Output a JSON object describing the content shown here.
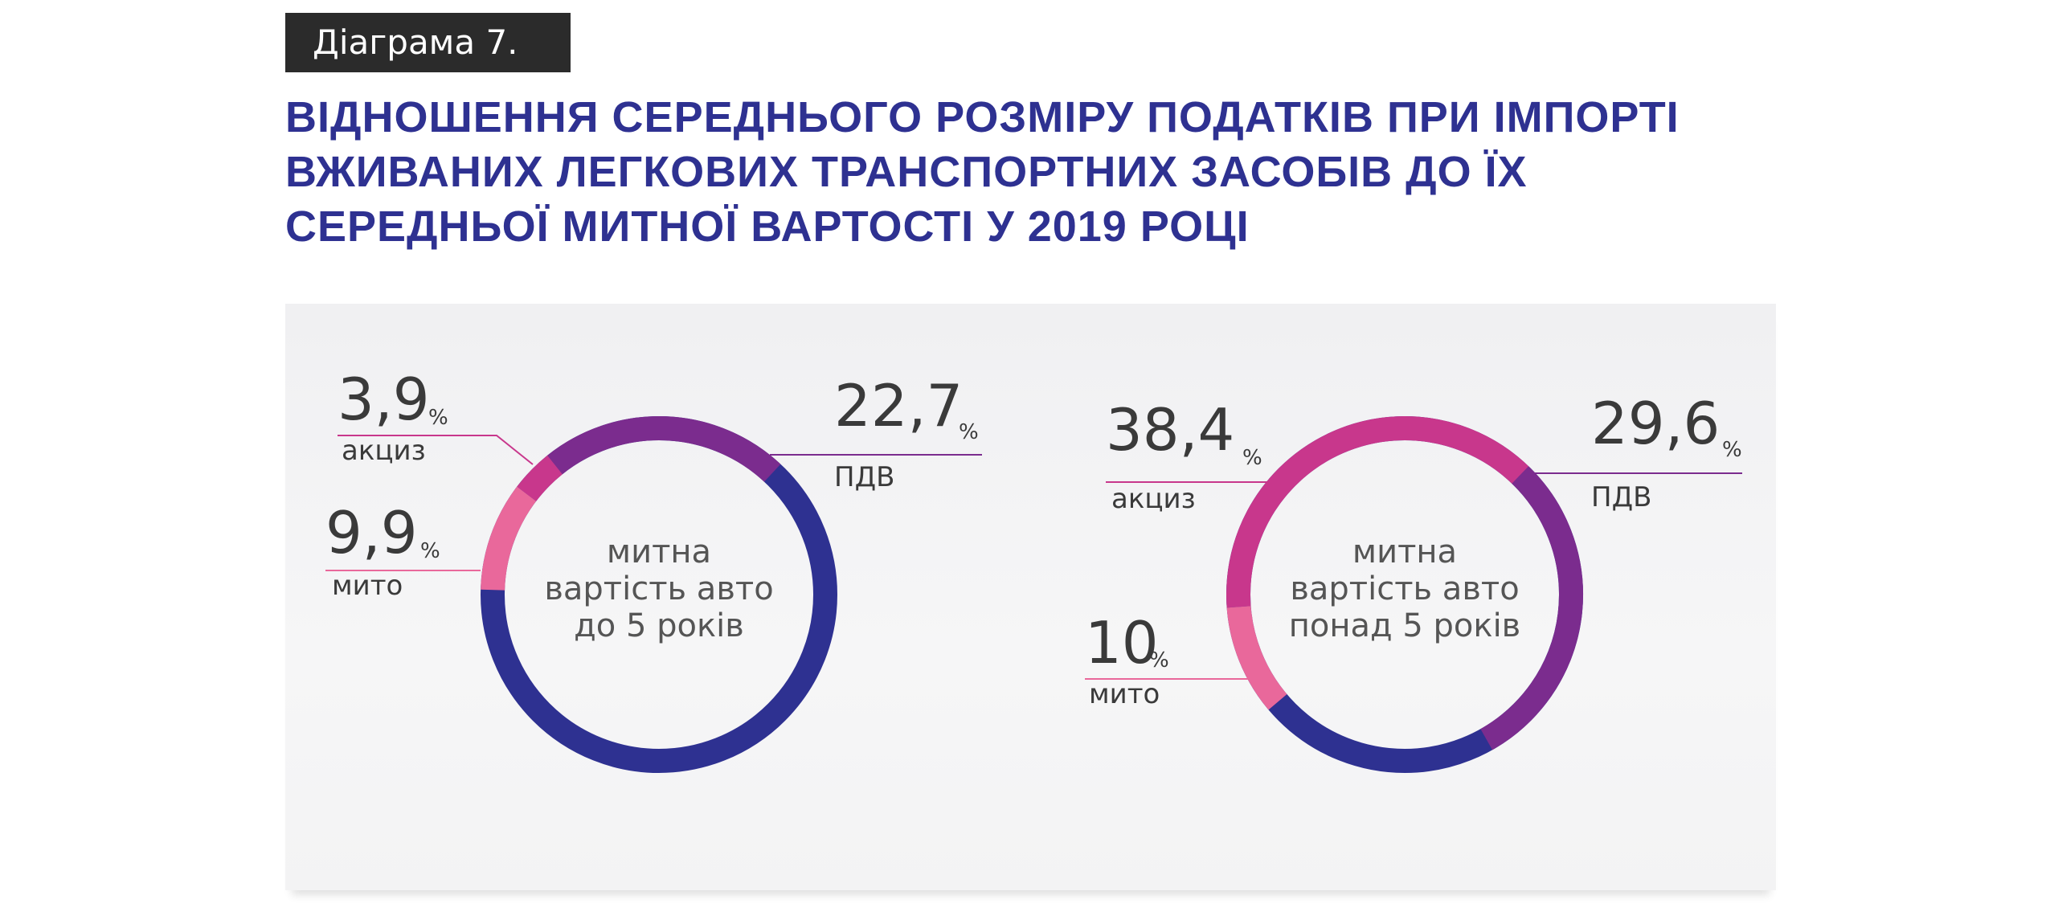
{
  "header": {
    "tag": "Діаграма 7.",
    "title_lines": [
      "ВІДНОШЕННЯ СЕРЕДНЬОГО РОЗМІРУ ПОДАТКІВ ПРИ ІМПОРТІ",
      "ВЖИВАНИХ ЛЕГКОВИХ ТРАНСПОРТНИХ ЗАСОБІВ ДО ЇХ",
      "СЕРЕДНЬОЇ МИТНОЇ ВАРТОСТІ У 2019 РОЦІ"
    ]
  },
  "colors": {
    "title": "#2e3191",
    "base": "#2e3191",
    "pdv": "#7b2c8e",
    "akcyz": "#c8378c",
    "myto": "#e9689b"
  },
  "chart_data": [
    {
      "type": "pie",
      "center_lines": [
        "митна",
        "вартість авто",
        "до 5 років"
      ],
      "base_color": "#2e3191",
      "slices": [
        {
          "name": "ПДВ",
          "value": 22.7,
          "label": "22,7",
          "unit": "%",
          "color": "#7b2c8e"
        },
        {
          "name": "акциз",
          "value": 3.9,
          "label": "3,9",
          "unit": "%",
          "color": "#c8378c"
        },
        {
          "name": "мито",
          "value": 9.9,
          "label": "9,9",
          "unit": "%",
          "color": "#e9689b"
        }
      ]
    },
    {
      "type": "pie",
      "center_lines": [
        "митна",
        "вартість авто",
        "понад 5 років"
      ],
      "base_color": "#2e3191",
      "slices": [
        {
          "name": "ПДВ",
          "value": 29.6,
          "label": "29,6",
          "unit": "%",
          "color": "#7b2c8e"
        },
        {
          "name": "акциз",
          "value": 38.4,
          "label": "38,4",
          "unit": "%",
          "color": "#c8378c"
        },
        {
          "name": "мито",
          "value": 10,
          "label": "10",
          "unit": "%",
          "color": "#e9689b"
        }
      ]
    }
  ]
}
